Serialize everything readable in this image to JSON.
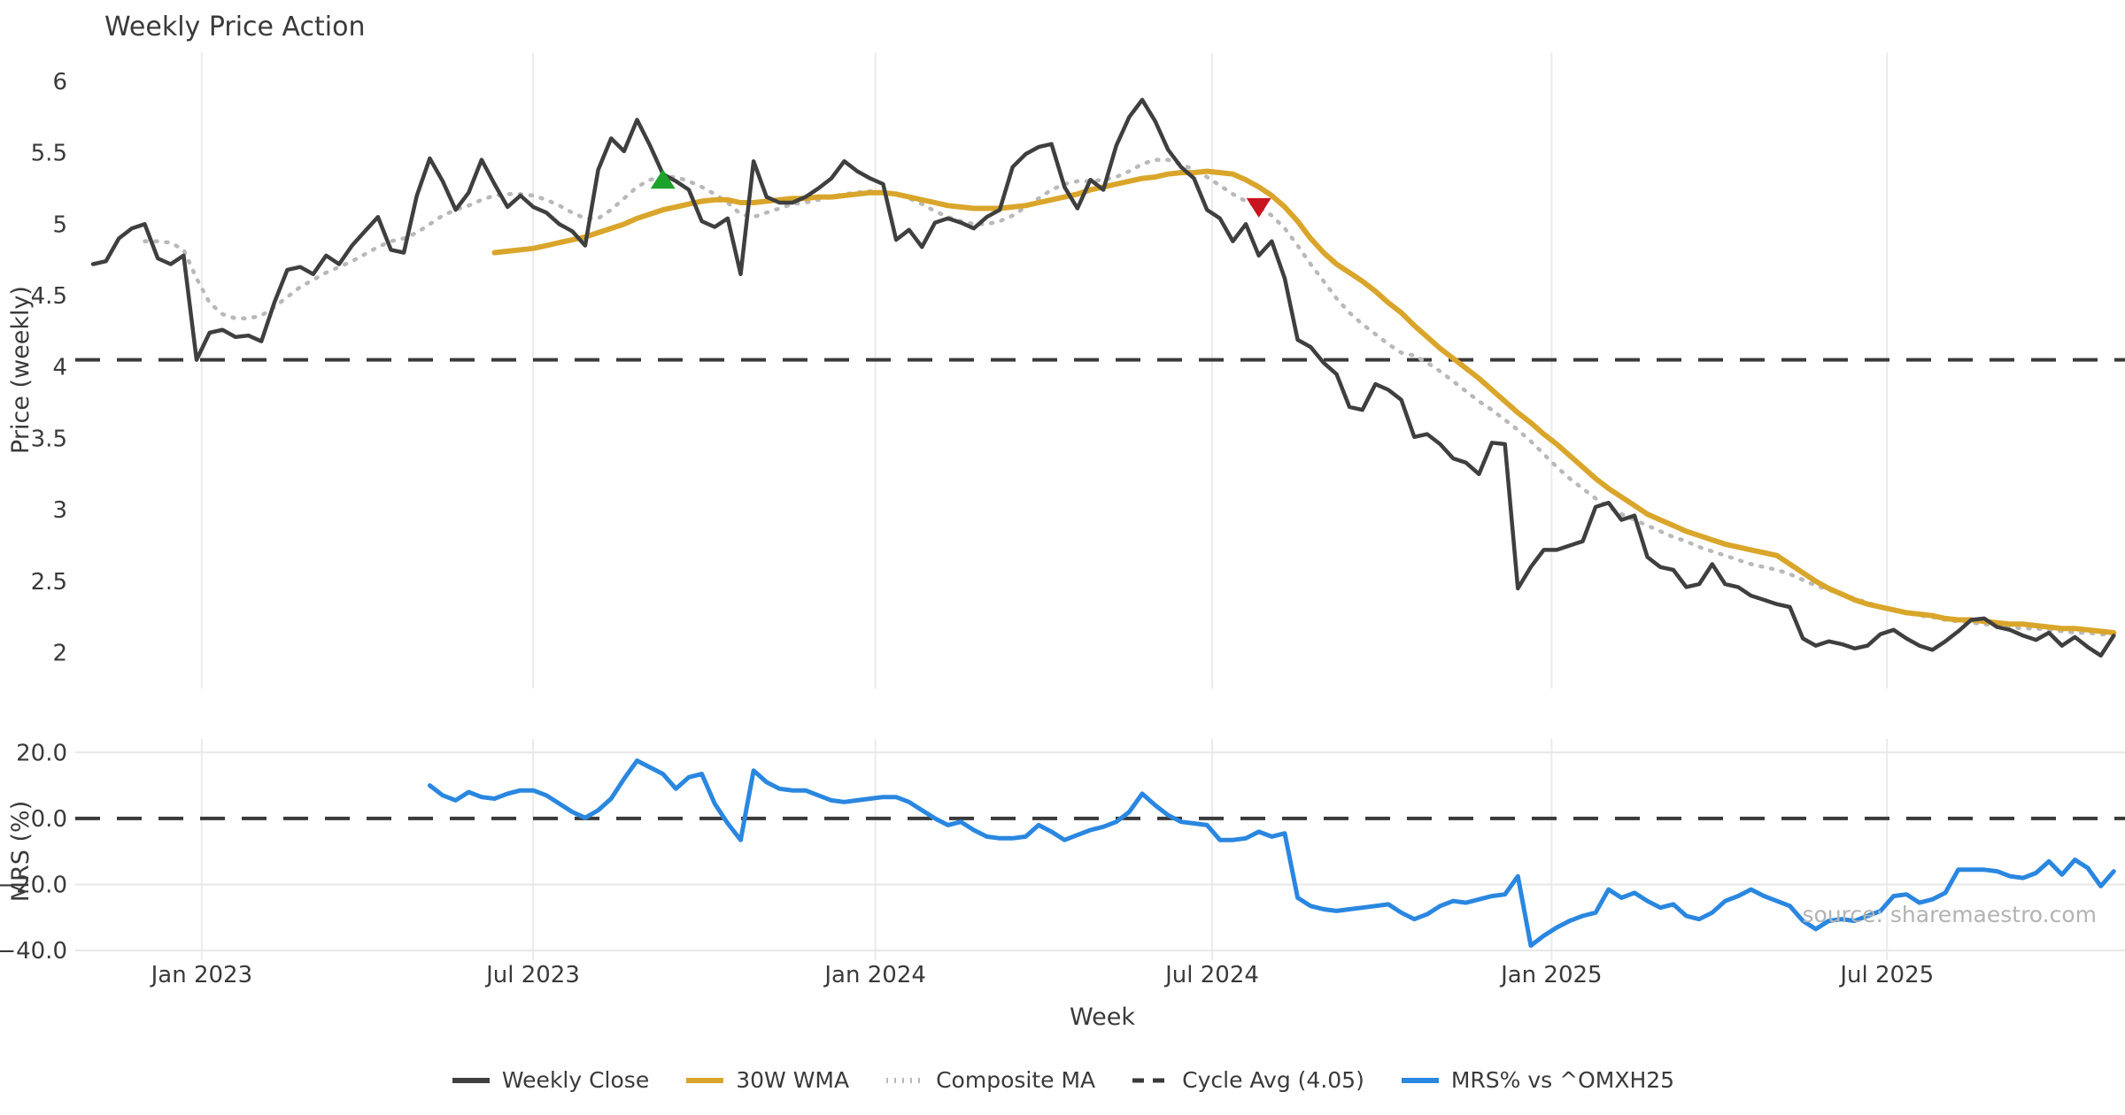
{
  "title": "Weekly Price Action",
  "watermark": "source: sharemaestro.com",
  "colors": {
    "close": "#3f3f3f",
    "wma": "#d9a62b",
    "composite": "#b9b9b9",
    "cycle_avg": "#3a3a3a",
    "mrs": "#2a87e0",
    "buy_marker": "#1ea32a",
    "sell_marker": "#c9131f",
    "grid": "#ebebeb",
    "text": "#3a3a3a",
    "watermark_color": "#b3b3b3"
  },
  "legend": [
    {
      "label": "Weekly Close",
      "style": "solid",
      "color": "#3f3f3f"
    },
    {
      "label": "30W WMA",
      "style": "solid",
      "color": "#d9a62b"
    },
    {
      "label": "Composite MA",
      "style": "dotted",
      "color": "#b9b9b9"
    },
    {
      "label": "Cycle Avg (4.05)",
      "style": "dashed",
      "color": "#3a3a3a"
    },
    {
      "label": "MRS% vs ^OMXH25",
      "style": "solid",
      "color": "#2a87e0"
    }
  ],
  "chart_data": [
    {
      "type": "line",
      "title": "Weekly Price Action",
      "xlabel": "Week",
      "ylabel": "Price (weekly)",
      "ylim": [
        1.75,
        6.2
      ],
      "yticks": [
        {
          "v": 6,
          "label": "6"
        },
        {
          "v": 5.5,
          "label": "5.5"
        },
        {
          "v": 5,
          "label": "5"
        },
        {
          "v": 4.5,
          "label": "4.5"
        },
        {
          "v": 4,
          "label": "4"
        },
        {
          "v": 3.5,
          "label": "3.5"
        },
        {
          "v": 3,
          "label": "3"
        },
        {
          "v": 2.5,
          "label": "2.5"
        },
        {
          "v": 2,
          "label": "2"
        }
      ],
      "grid": "vertical-only",
      "cycle_avg": 4.05,
      "annotations": [
        {
          "name": "buy-signal",
          "shape": "triangle-up",
          "week": 44,
          "value": 5.31
        },
        {
          "name": "sell-signal",
          "shape": "triangle-down",
          "week": 90,
          "value": 5.12
        }
      ],
      "series": [
        {
          "name": "Weekly Close",
          "start": 0,
          "values": [
            4.72,
            4.74,
            4.9,
            4.97,
            5.0,
            4.76,
            4.72,
            4.78,
            4.05,
            4.24,
            4.26,
            4.21,
            4.22,
            4.18,
            4.45,
            4.68,
            4.7,
            4.65,
            4.78,
            4.72,
            4.85,
            4.95,
            5.05,
            4.82,
            4.8,
            5.2,
            5.46,
            5.3,
            5.1,
            5.22,
            5.45,
            5.28,
            5.12,
            5.2,
            5.12,
            5.08,
            5.0,
            4.95,
            4.85,
            5.38,
            5.6,
            5.51,
            5.73,
            5.55,
            5.35,
            5.3,
            5.24,
            5.02,
            4.98,
            5.04,
            4.65,
            5.44,
            5.19,
            5.15,
            5.15,
            5.19,
            5.25,
            5.32,
            5.44,
            5.37,
            5.32,
            5.28,
            4.89,
            4.96,
            4.84,
            5.01,
            5.04,
            5.01,
            4.97,
            5.05,
            5.1,
            5.4,
            5.49,
            5.54,
            5.56,
            5.26,
            5.11,
            5.31,
            5.24,
            5.55,
            5.75,
            5.87,
            5.72,
            5.52,
            5.4,
            5.32,
            5.1,
            5.04,
            4.88,
            5.0,
            4.78,
            4.88,
            4.62,
            4.19,
            4.14,
            4.03,
            3.95,
            3.72,
            3.7,
            3.88,
            3.84,
            3.77,
            3.51,
            3.53,
            3.46,
            3.36,
            3.33,
            3.25,
            3.47,
            3.46,
            2.45,
            2.6,
            2.72,
            2.72,
            2.75,
            2.78,
            3.02,
            3.05,
            2.93,
            2.96,
            2.67,
            2.6,
            2.58,
            2.46,
            2.48,
            2.62,
            2.48,
            2.46,
            2.4,
            2.37,
            2.34,
            2.32,
            2.1,
            2.05,
            2.08,
            2.06,
            2.03,
            2.05,
            2.13,
            2.16,
            2.1,
            2.05,
            2.02,
            2.08,
            2.15,
            2.23,
            2.24,
            2.18,
            2.16,
            2.12,
            2.09,
            2.14,
            2.05,
            2.11,
            2.04,
            1.98,
            2.12
          ]
        },
        {
          "name": "30W WMA",
          "start": 31,
          "values": [
            4.8,
            4.81,
            4.82,
            4.83,
            4.85,
            4.87,
            4.89,
            4.91,
            4.94,
            4.97,
            5.0,
            5.04,
            5.07,
            5.1,
            5.12,
            5.14,
            5.16,
            5.17,
            5.17,
            5.15,
            5.15,
            5.16,
            5.17,
            5.18,
            5.18,
            5.19,
            5.19,
            5.2,
            5.21,
            5.22,
            5.22,
            5.21,
            5.19,
            5.17,
            5.15,
            5.13,
            5.12,
            5.11,
            5.11,
            5.11,
            5.12,
            5.13,
            5.15,
            5.17,
            5.19,
            5.21,
            5.24,
            5.26,
            5.28,
            5.3,
            5.32,
            5.33,
            5.35,
            5.36,
            5.36,
            5.37,
            5.36,
            5.35,
            5.31,
            5.26,
            5.2,
            5.12,
            5.02,
            4.9,
            4.8,
            4.72,
            4.66,
            4.6,
            4.53,
            4.45,
            4.38,
            4.29,
            4.21,
            4.13,
            4.06,
            3.99,
            3.92,
            3.84,
            3.76,
            3.68,
            3.61,
            3.53,
            3.46,
            3.38,
            3.3,
            3.22,
            3.15,
            3.09,
            3.03,
            2.97,
            2.93,
            2.89,
            2.85,
            2.82,
            2.79,
            2.76,
            2.74,
            2.72,
            2.7,
            2.68,
            2.62,
            2.56,
            2.5,
            2.45,
            2.41,
            2.37,
            2.34,
            2.32,
            2.3,
            2.28,
            2.27,
            2.26,
            2.24,
            2.23,
            2.23,
            2.22,
            2.21,
            2.2,
            2.2,
            2.19,
            2.18,
            2.17,
            2.17,
            2.16,
            2.15,
            2.14
          ]
        },
        {
          "name": "Composite MA",
          "start": 4,
          "values": [
            4.88,
            4.88,
            4.87,
            4.82,
            4.62,
            4.45,
            4.37,
            4.34,
            4.34,
            4.36,
            4.42,
            4.49,
            4.56,
            4.61,
            4.66,
            4.7,
            4.74,
            4.79,
            4.84,
            4.88,
            4.9,
            4.94,
            5.0,
            5.06,
            5.1,
            5.13,
            5.17,
            5.2,
            5.21,
            5.21,
            5.2,
            5.17,
            5.13,
            5.08,
            5.04,
            5.04,
            5.1,
            5.18,
            5.26,
            5.31,
            5.33,
            5.33,
            5.3,
            5.26,
            5.21,
            5.15,
            5.07,
            5.05,
            5.08,
            5.11,
            5.14,
            5.15,
            5.17,
            5.19,
            5.21,
            5.22,
            5.23,
            5.22,
            5.21,
            5.18,
            5.14,
            5.09,
            5.05,
            5.02,
            5.0,
            5.0,
            5.02,
            5.06,
            5.12,
            5.18,
            5.24,
            5.28,
            5.3,
            5.3,
            5.31,
            5.33,
            5.37,
            5.42,
            5.45,
            5.45,
            5.42,
            5.38,
            5.33,
            5.27,
            5.21,
            5.16,
            5.12,
            5.06,
            4.97,
            4.85,
            4.72,
            4.6,
            4.48,
            4.38,
            4.3,
            4.23,
            4.16,
            4.1,
            4.08,
            4.03,
            3.97,
            3.9,
            3.83,
            3.76,
            3.7,
            3.63,
            3.56,
            3.48,
            3.39,
            3.3,
            3.22,
            3.15,
            3.08,
            3.02,
            2.97,
            2.93,
            2.89,
            2.85,
            2.81,
            2.78,
            2.74,
            2.71,
            2.68,
            2.65,
            2.62,
            2.6,
            2.58,
            2.55,
            2.51,
            2.47,
            2.44,
            2.41,
            2.38,
            2.35,
            2.32,
            2.3,
            2.28,
            2.26,
            2.25,
            2.23,
            2.22,
            2.21,
            2.2,
            2.19,
            2.18,
            2.17,
            2.17,
            2.16,
            2.15,
            2.14,
            2.14,
            2.13,
            2.12
          ]
        }
      ],
      "xticks": [
        {
          "label": "Jan 2023",
          "i": 8.4
        },
        {
          "label": "Jul 2023",
          "i": 33.97
        },
        {
          "label": "Jan 2024",
          "i": 60.4
        },
        {
          "label": "Jul 2024",
          "i": 86.4
        },
        {
          "label": "Jan 2025",
          "i": 112.6
        },
        {
          "label": "Jul 2025",
          "i": 138.5
        }
      ]
    },
    {
      "type": "line",
      "xlabel": "Week",
      "ylabel": "MRS (%)",
      "ylim": [
        -42.9,
        24.1
      ],
      "yticks": [
        {
          "v": 20,
          "label": "20.0"
        },
        {
          "v": 0,
          "label": "0.0"
        },
        {
          "v": -20,
          "label": "−20.0"
        },
        {
          "v": -40,
          "label": "−40.0"
        }
      ],
      "grid": "both",
      "zero_line": 0,
      "series": [
        {
          "name": "MRS% vs ^OMXH25",
          "start": 26,
          "values": [
            10.0,
            7.0,
            5.5,
            8.0,
            6.5,
            6.0,
            7.5,
            8.5,
            8.5,
            7.0,
            4.5,
            2.0,
            0.2,
            2.5,
            6.0,
            12.0,
            17.5,
            15.5,
            13.5,
            9.0,
            12.5,
            13.5,
            4.5,
            -1.5,
            -6.5,
            14.5,
            11.0,
            9.0,
            8.5,
            8.5,
            7.0,
            5.5,
            5.0,
            5.5,
            6.0,
            6.5,
            6.5,
            5.0,
            2.5,
            0.0,
            -2.0,
            -1.0,
            -3.5,
            -5.5,
            -6.0,
            -6.0,
            -5.5,
            -2.0,
            -4.0,
            -6.5,
            -5.0,
            -3.5,
            -2.5,
            -1.0,
            2.0,
            7.5,
            4.0,
            1.0,
            -1.0,
            -1.5,
            -2.0,
            -6.5,
            -6.5,
            -6.0,
            -4.0,
            -5.5,
            -4.5,
            -24.0,
            -26.5,
            -27.5,
            -28.0,
            -27.5,
            -27.0,
            -26.5,
            -26.0,
            -28.5,
            -30.5,
            -29.0,
            -26.5,
            -25.0,
            -25.5,
            -24.5,
            -23.5,
            -23.0,
            -17.5,
            -38.5,
            -35.5,
            -33.0,
            -31.0,
            -29.5,
            -28.5,
            -21.5,
            -24.0,
            -22.5,
            -25.0,
            -27.0,
            -26.0,
            -29.5,
            -30.5,
            -28.5,
            -25.0,
            -23.5,
            -21.5,
            -23.5,
            -25.0,
            -26.5,
            -31.0,
            -33.5,
            -31.0,
            -30.5,
            -31.0,
            -29.5,
            -28.0,
            -23.5,
            -23.0,
            -25.5,
            -24.5,
            -22.5,
            -15.5,
            -15.5,
            -15.5,
            -16.0,
            -17.5,
            -18.0,
            -16.5,
            -13.0,
            -17.0,
            -12.5,
            -15.0,
            -20.5,
            -16.0
          ]
        }
      ],
      "xticks": [
        {
          "label": "Jan 2023",
          "i": 8.4
        },
        {
          "label": "Jul 2023",
          "i": 33.97
        },
        {
          "label": "Jan 2024",
          "i": 60.4
        },
        {
          "label": "Jul 2024",
          "i": 86.4
        },
        {
          "label": "Jan 2025",
          "i": 112.6
        },
        {
          "label": "Jul 2025",
          "i": 138.5
        }
      ]
    }
  ]
}
